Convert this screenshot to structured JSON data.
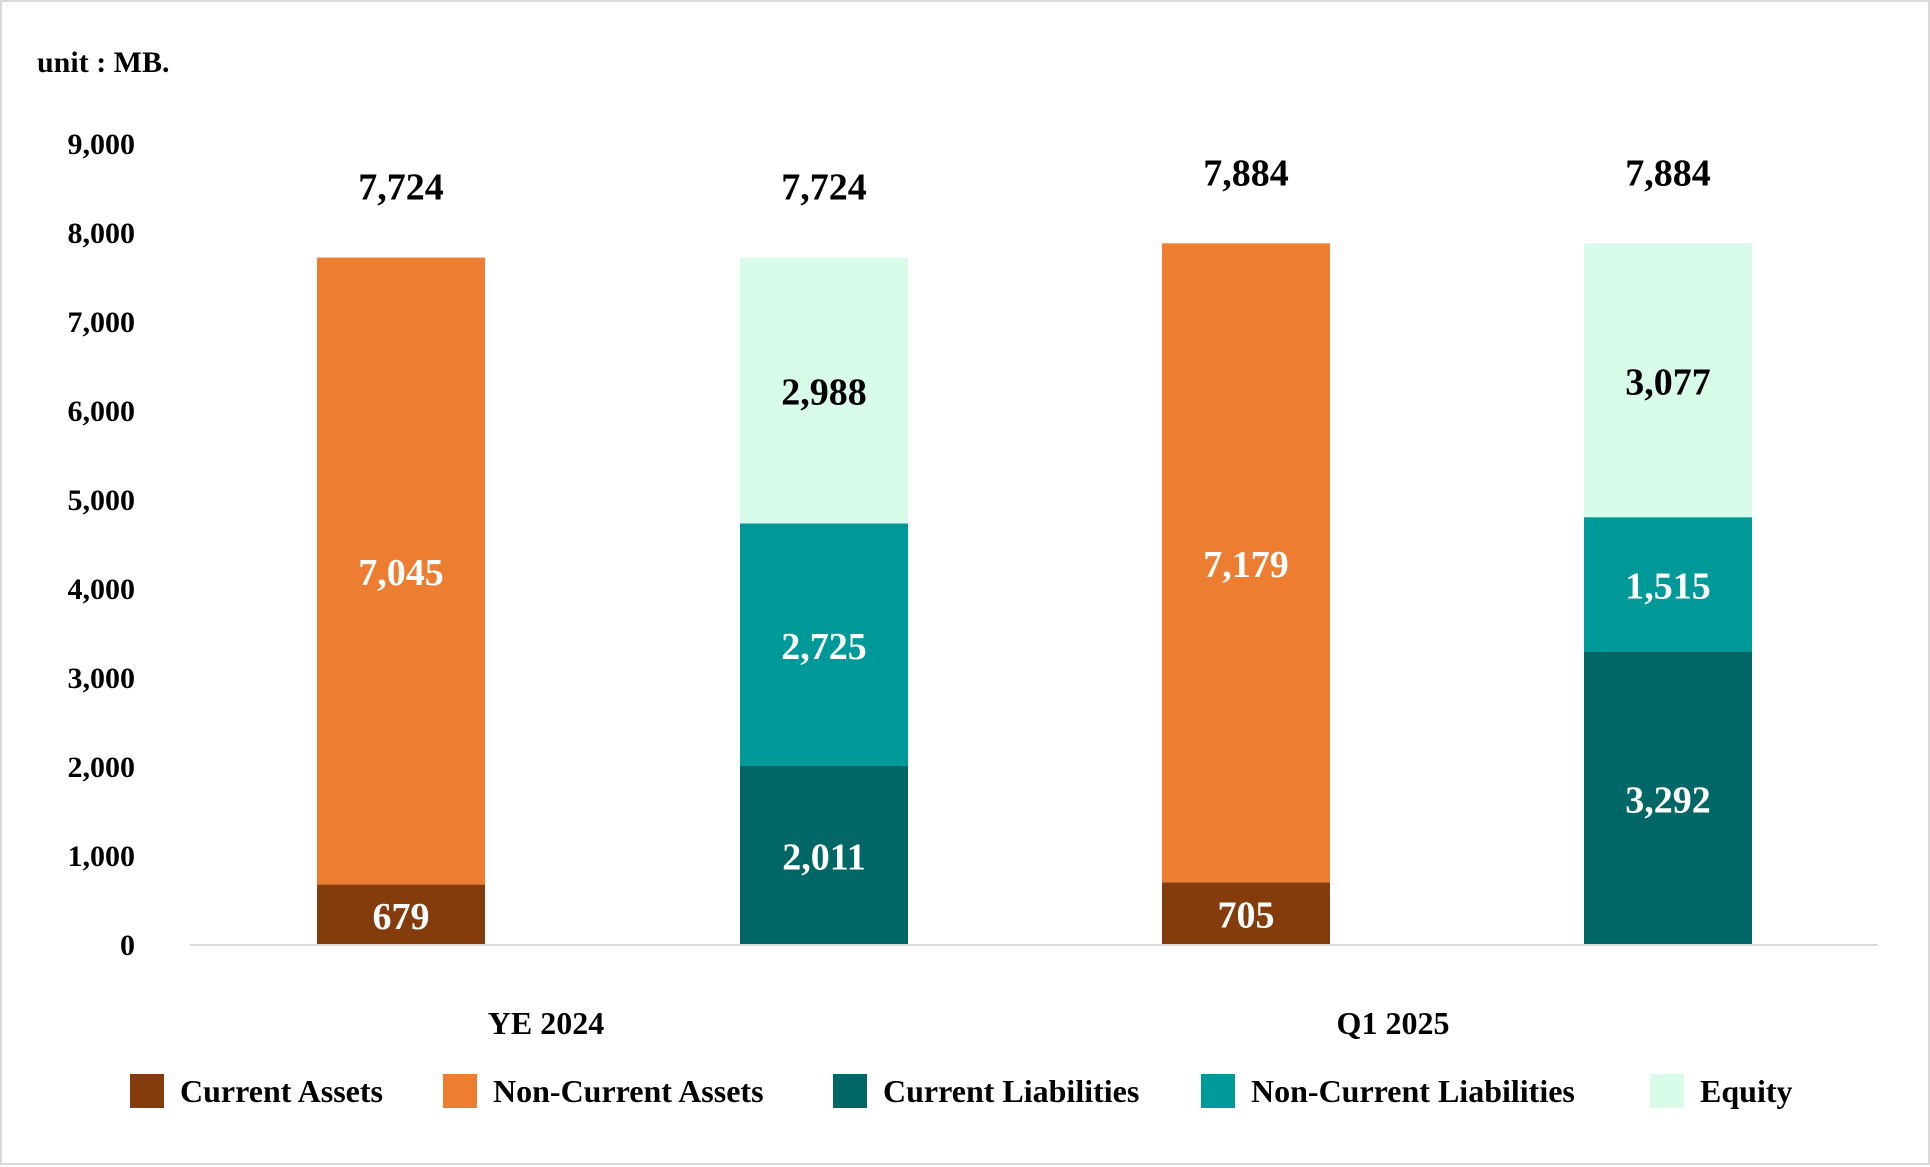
{
  "chart_data": {
    "type": "bar",
    "stacked": true,
    "unit_label": "unit : MB.",
    "categories": [
      "YE 2024",
      "Q1 2025"
    ],
    "ylim": [
      0,
      9000
    ],
    "yticks": [
      "0",
      "1,000",
      "2,000",
      "3,000",
      "4,000",
      "5,000",
      "6,000",
      "7,000",
      "8,000",
      "9,000"
    ],
    "grid": false,
    "legend_position": "bottom",
    "stacks": [
      {
        "category": "YE 2024",
        "total": 7724,
        "total_label": "7,724",
        "segments": [
          {
            "series": "Current Assets",
            "value": 679,
            "label": "679"
          },
          {
            "series": "Non-Current Assets",
            "value": 7045,
            "label": "7,045"
          }
        ]
      },
      {
        "category": "YE 2024",
        "total": 7724,
        "total_label": "7,724",
        "segments": [
          {
            "series": "Current Liabilities",
            "value": 2011,
            "label": "2,011"
          },
          {
            "series": "Non-Current Liabilities",
            "value": 2725,
            "label": "2,725"
          },
          {
            "series": "Equity",
            "value": 2988,
            "label": "2,988"
          }
        ]
      },
      {
        "category": "Q1 2025",
        "total": 7884,
        "total_label": "7,884",
        "segments": [
          {
            "series": "Current Assets",
            "value": 705,
            "label": "705"
          },
          {
            "series": "Non-Current Assets",
            "value": 7179,
            "label": "7,179"
          }
        ]
      },
      {
        "category": "Q1 2025",
        "total": 7884,
        "total_label": "7,884",
        "segments": [
          {
            "series": "Current Liabilities",
            "value": 3292,
            "label": "3,292"
          },
          {
            "series": "Non-Current Liabilities",
            "value": 1515,
            "label": "1,515"
          },
          {
            "series": "Equity",
            "value": 3077,
            "label": "3,077"
          }
        ]
      }
    ],
    "series": [
      {
        "name": "Current Assets",
        "color": "#843c0c",
        "label_color": "#ffffff"
      },
      {
        "name": "Non-Current Assets",
        "color": "#ed7d31",
        "label_color": "#ffffff"
      },
      {
        "name": "Current Liabilities",
        "color": "#006666",
        "label_color": "#ffffff"
      },
      {
        "name": "Non-Current Liabilities",
        "color": "#009999",
        "label_color": "#ffffff"
      },
      {
        "name": "Equity",
        "color": "#d9fbe9",
        "label_color": "#000000"
      }
    ]
  }
}
